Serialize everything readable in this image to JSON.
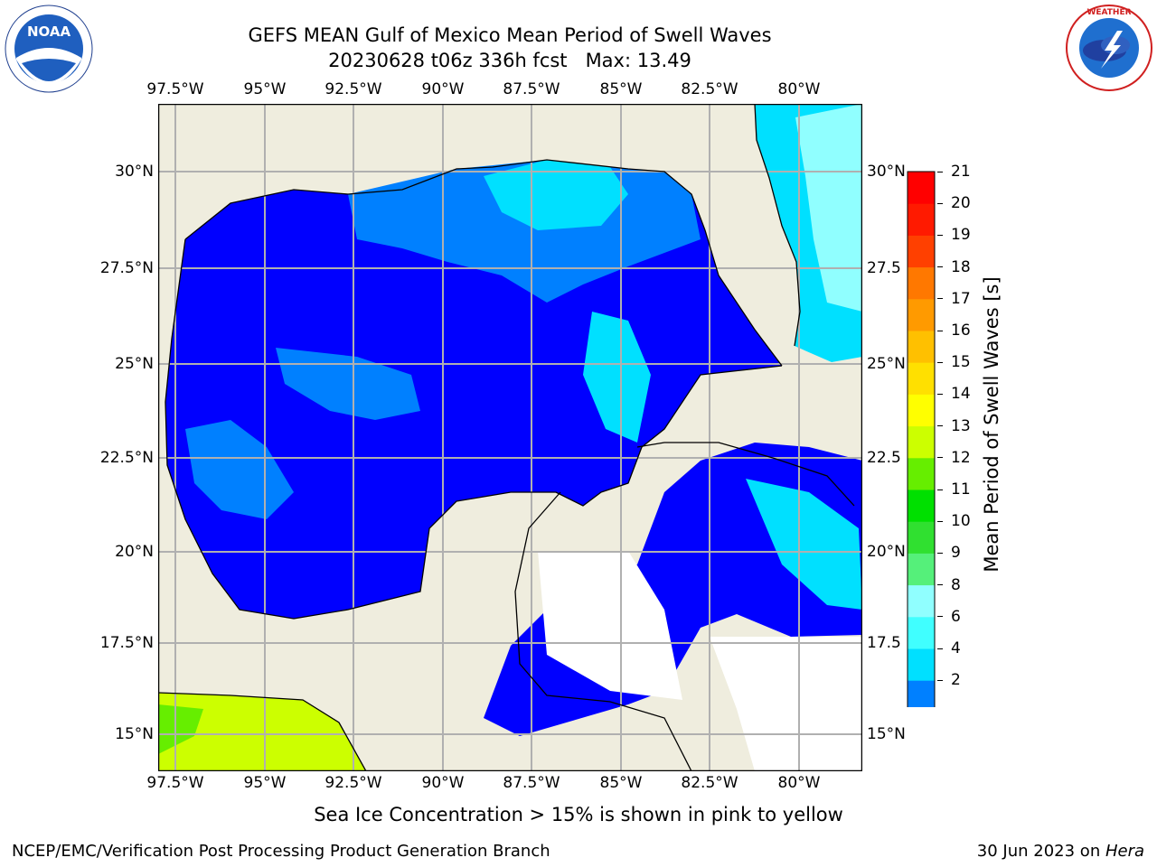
{
  "title": {
    "line1": "GEFS MEAN Gulf of Mexico Mean Period of Swell Waves",
    "line2": "20230628 t06z 336h fcst   Max: 13.49"
  },
  "logos": {
    "left": {
      "name": "noaa-logo",
      "text": "NOAA",
      "ring_text": "NATIONAL OCEANIC AND ATMOSPHERIC ADMINISTRATION · U.S. DEPARTMENT OF COMMERCE"
    },
    "right": {
      "name": "nws-logo",
      "ring_text": "NATIONAL WEATHER SERVICE"
    }
  },
  "map": {
    "lon_ticks": [
      "97.5°W",
      "95°W",
      "92.5°W",
      "90°W",
      "87.5°W",
      "85°W",
      "82.5°W",
      "80°W"
    ],
    "lat_ticks_left": [
      "30°N",
      "27.5°N",
      "25°N",
      "22.5°N",
      "20°N",
      "17.5°N",
      "15°N"
    ],
    "lat_ticks_right": [
      "30°N",
      "27.5",
      "25°N",
      "22.5",
      "20°N",
      "17.5",
      "15°N"
    ],
    "land_color": "#efedde",
    "gridline_color": "#b0b0b0",
    "regions": [
      {
        "name": "central-gulf",
        "period_s": "2-4",
        "color": "#0000ff"
      },
      {
        "name": "northern-gulf-band",
        "period_s": "4-6",
        "color": "#0080ff"
      },
      {
        "name": "east-gulf-plume",
        "period_s": "6-8",
        "color": "#00ffff"
      },
      {
        "name": "atlantic-east-florida",
        "period_s": "8-9",
        "color": "#80ffff"
      },
      {
        "name": "pacific-coast",
        "period_s": "12-13",
        "color": "#ccff00"
      }
    ]
  },
  "colorbar": {
    "label": "Mean Period of Swell Waves [s]",
    "ticks": [
      "2",
      "4",
      "6",
      "8",
      "9",
      "10",
      "11",
      "12",
      "13",
      "14",
      "15",
      "16",
      "17",
      "18",
      "19",
      "20",
      "21"
    ],
    "colors": [
      "#0000ff",
      "#0080ff",
      "#00e0ff",
      "#40ffff",
      "#90ffff",
      "#55f07a",
      "#30e030",
      "#00e000",
      "#66ee00",
      "#ccff00",
      "#ffff00",
      "#ffe000",
      "#ffc000",
      "#ff9a00",
      "#ff7800",
      "#ff4000",
      "#ff1a00",
      "#ff0000"
    ]
  },
  "caption": "Sea Ice Concentration > 15% is shown in pink to yellow",
  "footer": {
    "left": "NCEP/EMC/Verification Post Processing Product Generation Branch",
    "right_prefix": "30 Jun 2023 on ",
    "right_host": "Hera"
  }
}
